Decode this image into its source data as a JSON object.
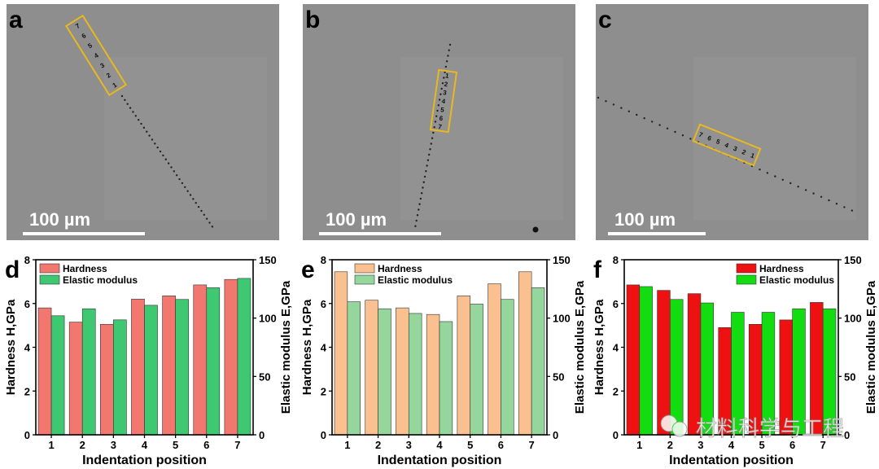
{
  "micrographs": [
    {
      "label": "a",
      "scale_bar": "100 µm",
      "indent_numbers": [
        "7",
        "6",
        "5",
        "4",
        "3",
        "2",
        "1"
      ]
    },
    {
      "label": "b",
      "scale_bar": "100 µm",
      "indent_numbers": [
        "1",
        "2",
        "3",
        "4",
        "5",
        "6",
        "7"
      ]
    },
    {
      "label": "c",
      "scale_bar": "100 µm",
      "indent_numbers": [
        "7",
        "6",
        "5",
        "4",
        "3",
        "2",
        "1"
      ]
    }
  ],
  "watermark": "材料科学与工程",
  "chart_data": [
    {
      "type": "bar",
      "panel_label": "d",
      "xlabel": "Indentation position",
      "ylabel": "Hardness H,GPa",
      "y2label": "Elastic modulus E,GPa",
      "categories": [
        "1",
        "2",
        "3",
        "4",
        "5",
        "6",
        "7"
      ],
      "ylim": [
        0,
        8
      ],
      "yticks": [
        "0",
        "2",
        "4",
        "6",
        "8"
      ],
      "y2lim": [
        0,
        150
      ],
      "y2ticks": [
        "0",
        "50",
        "100",
        "150"
      ],
      "legend": "top-left",
      "series": [
        {
          "name": "Hardness",
          "axis": "left",
          "color": "#f2776f",
          "values": [
            5.8,
            5.15,
            5.05,
            6.2,
            6.35,
            6.85,
            7.1
          ]
        },
        {
          "name": "Elastic modulus",
          "axis": "right",
          "color": "#3fc872",
          "values": [
            102,
            108,
            98.5,
            111,
            116,
            126,
            134
          ]
        }
      ]
    },
    {
      "type": "bar",
      "panel_label": "e",
      "xlabel": "Indentation position",
      "ylabel": "Hardness H,GPa",
      "y2label": "Elastic modulus E,GPa",
      "categories": [
        "1",
        "2",
        "3",
        "4",
        "5",
        "6",
        "7"
      ],
      "ylim": [
        0,
        8
      ],
      "yticks": [
        "0",
        "2",
        "4",
        "6",
        "8"
      ],
      "y2lim": [
        0,
        150
      ],
      "y2ticks": [
        "0",
        "50",
        "100",
        "150"
      ],
      "legend": "top-left",
      "series": [
        {
          "name": "Hardness",
          "axis": "left",
          "color": "#fbc08f",
          "values": [
            7.45,
            6.15,
            5.8,
            5.5,
            6.35,
            6.9,
            7.45
          ]
        },
        {
          "name": "Elastic modulus",
          "axis": "right",
          "color": "#95d69c",
          "values": [
            114,
            108,
            104,
            97,
            112,
            116,
            126
          ]
        }
      ]
    },
    {
      "type": "bar",
      "panel_label": "f",
      "xlabel": "Indentation position",
      "ylabel": "Hardness H,GPa",
      "y2label": "Elastic modulus E,GPa",
      "categories": [
        "1",
        "2",
        "3",
        "4",
        "5",
        "6",
        "7"
      ],
      "ylim": [
        0,
        8
      ],
      "yticks": [
        "0",
        "2",
        "4",
        "6",
        "8"
      ],
      "y2lim": [
        0,
        150
      ],
      "y2ticks": [
        "0",
        "50",
        "100",
        "150"
      ],
      "legend": "top-right",
      "series": [
        {
          "name": "Hardness",
          "axis": "left",
          "color": "#ee1111",
          "values": [
            6.85,
            6.6,
            6.45,
            4.9,
            5.05,
            5.25,
            6.05
          ]
        },
        {
          "name": "Elastic modulus",
          "axis": "right",
          "color": "#11dd11",
          "values": [
            127,
            116,
            113,
            105,
            105,
            108,
            108
          ]
        }
      ]
    }
  ]
}
